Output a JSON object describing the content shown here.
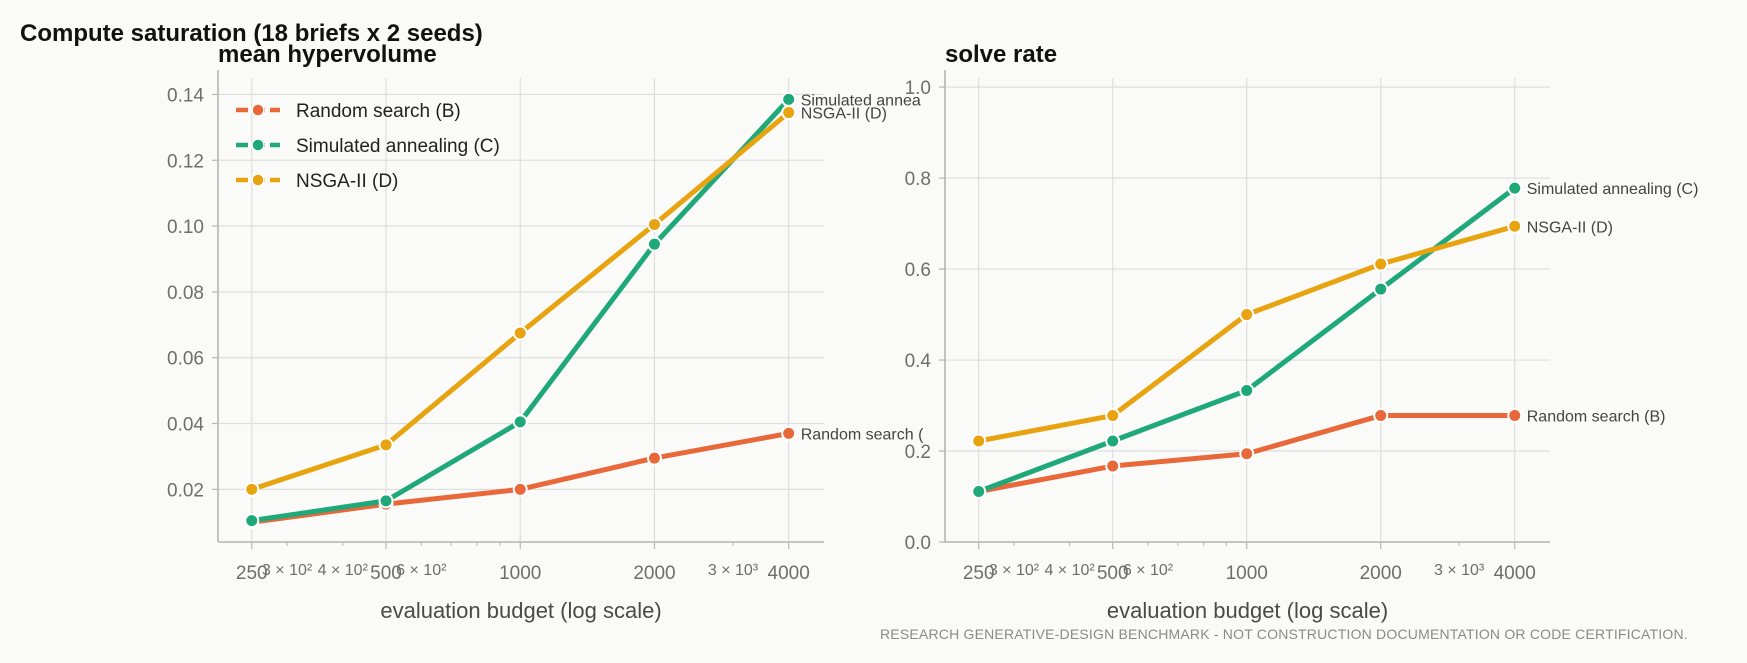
{
  "suptitle": "Compute saturation (18 briefs x 2 seeds)",
  "footnote": "RESEARCH GENERATIVE-DESIGN BENCHMARK - NOT CONSTRUCTION DOCUMENTATION OR CODE CERTIFICATION.",
  "colors": {
    "random": "#e8683a",
    "annealing": "#1fa97a",
    "nsga": "#e8a310",
    "grid": "#dedede",
    "axis": "#b5b5b5"
  },
  "chart_data": [
    {
      "type": "line",
      "title": "mean hypervolume",
      "xlabel": "evaluation budget (log scale)",
      "ylabel": "",
      "xscale": "log",
      "x": [
        250,
        500,
        1000,
        2000,
        4000
      ],
      "xticks_major": [
        "250",
        "500",
        "1000",
        "2000",
        "4000"
      ],
      "xticks_minor": [
        "3 × 10²",
        "4 × 10²",
        "6 × 10²",
        "3 × 10³"
      ],
      "xlim": [
        210,
        4800
      ],
      "ylim": [
        0.004,
        0.145
      ],
      "yticks": [
        "0.02",
        "0.04",
        "0.06",
        "0.08",
        "0.10",
        "0.12",
        "0.14"
      ],
      "grid": true,
      "legend": "top-left",
      "series": [
        {
          "name": "Random search (B)",
          "color_key": "random",
          "values": [
            0.01,
            0.0155,
            0.02,
            0.0295,
            0.037
          ],
          "end_label": "Random search ("
        },
        {
          "name": "Simulated annealing (C)",
          "color_key": "annealing",
          "values": [
            0.0105,
            0.0165,
            0.0405,
            0.0945,
            0.1385
          ],
          "end_label": "Simulated annea"
        },
        {
          "name": "NSGA-II (D)",
          "color_key": "nsga",
          "values": [
            0.02,
            0.0335,
            0.0675,
            0.1005,
            0.1345
          ],
          "end_label": "NSGA-II (D)"
        }
      ]
    },
    {
      "type": "line",
      "title": "solve rate",
      "xlabel": "evaluation budget (log scale)",
      "ylabel": "",
      "xscale": "log",
      "x": [
        250,
        500,
        1000,
        2000,
        4000
      ],
      "xticks_major": [
        "250",
        "500",
        "1000",
        "2000",
        "4000"
      ],
      "xticks_minor": [
        "3 × 10²",
        "4 × 10²",
        "6 × 10²",
        "3 × 10³"
      ],
      "xlim": [
        210,
        4800
      ],
      "ylim": [
        0.0,
        1.02
      ],
      "yticks": [
        "0.0",
        "0.2",
        "0.4",
        "0.6",
        "0.8",
        "1.0"
      ],
      "grid": true,
      "legend": "none",
      "series": [
        {
          "name": "Random search (B)",
          "color_key": "random",
          "values": [
            0.111,
            0.167,
            0.194,
            0.278,
            0.278
          ],
          "end_label": "Random search (B)"
        },
        {
          "name": "Simulated annealing (C)",
          "color_key": "annealing",
          "values": [
            0.111,
            0.222,
            0.333,
            0.556,
            0.778
          ],
          "end_label": "Simulated annealing (C)"
        },
        {
          "name": "NSGA-II (D)",
          "color_key": "nsga",
          "values": [
            0.222,
            0.278,
            0.5,
            0.611,
            0.694
          ],
          "end_label": "NSGA-II (D)"
        }
      ]
    }
  ]
}
